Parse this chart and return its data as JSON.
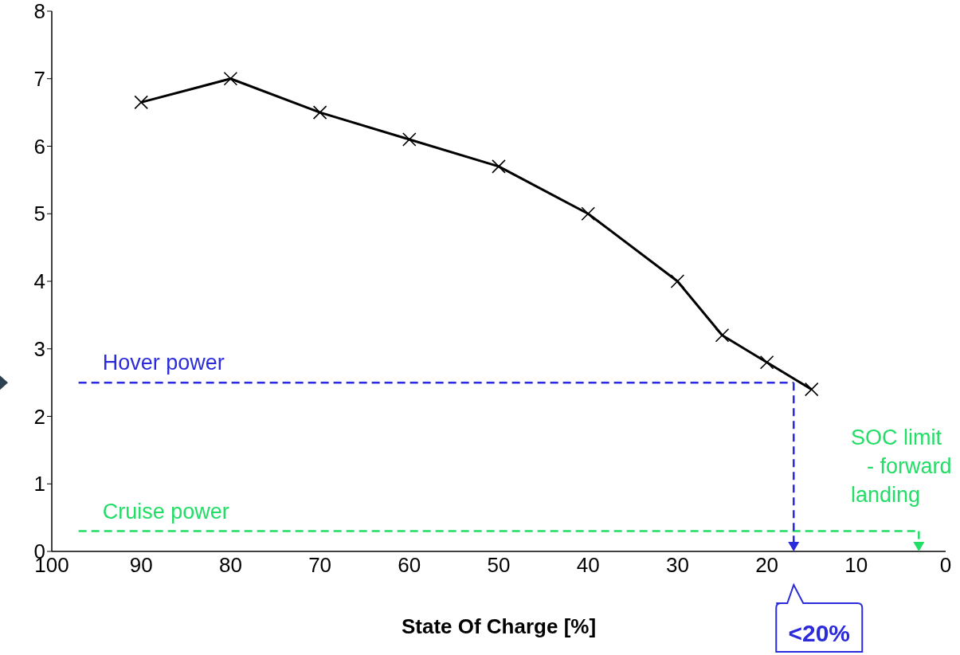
{
  "chart_data": {
    "type": "line",
    "xlabel": "State Of Charge [%]",
    "xlim": [
      100,
      0
    ],
    "xticks": [
      100,
      90,
      80,
      70,
      60,
      50,
      40,
      30,
      20,
      10,
      0
    ],
    "ylim": [
      0,
      8
    ],
    "yticks": [
      0,
      1,
      2,
      3,
      4,
      5,
      6,
      7,
      8
    ],
    "grid": false,
    "legend": false,
    "series": [
      {
        "color": "#000000",
        "marker": "cross",
        "line_style": "solid",
        "x": [
          90,
          80,
          70,
          60,
          50,
          40,
          30,
          25,
          20,
          15
        ],
        "values": [
          6.65,
          7,
          6.5,
          6.1,
          5.7,
          5,
          4,
          3.2,
          2.8,
          2.4
        ]
      },
      {
        "name": "Hover power",
        "color": "#2b2bdc",
        "marker": "none",
        "line_style": "dashed",
        "x": [
          97,
          17
        ],
        "values": [
          2.5,
          2.5
        ]
      },
      {
        "name": "Cruise power",
        "color": "#22dd66",
        "marker": "none",
        "line_style": "dashed",
        "x": [
          97,
          3
        ],
        "values": [
          0.3,
          0.3
        ]
      }
    ],
    "annotations": [
      "SOC limit - forward landing",
      "<20%"
    ]
  }
}
